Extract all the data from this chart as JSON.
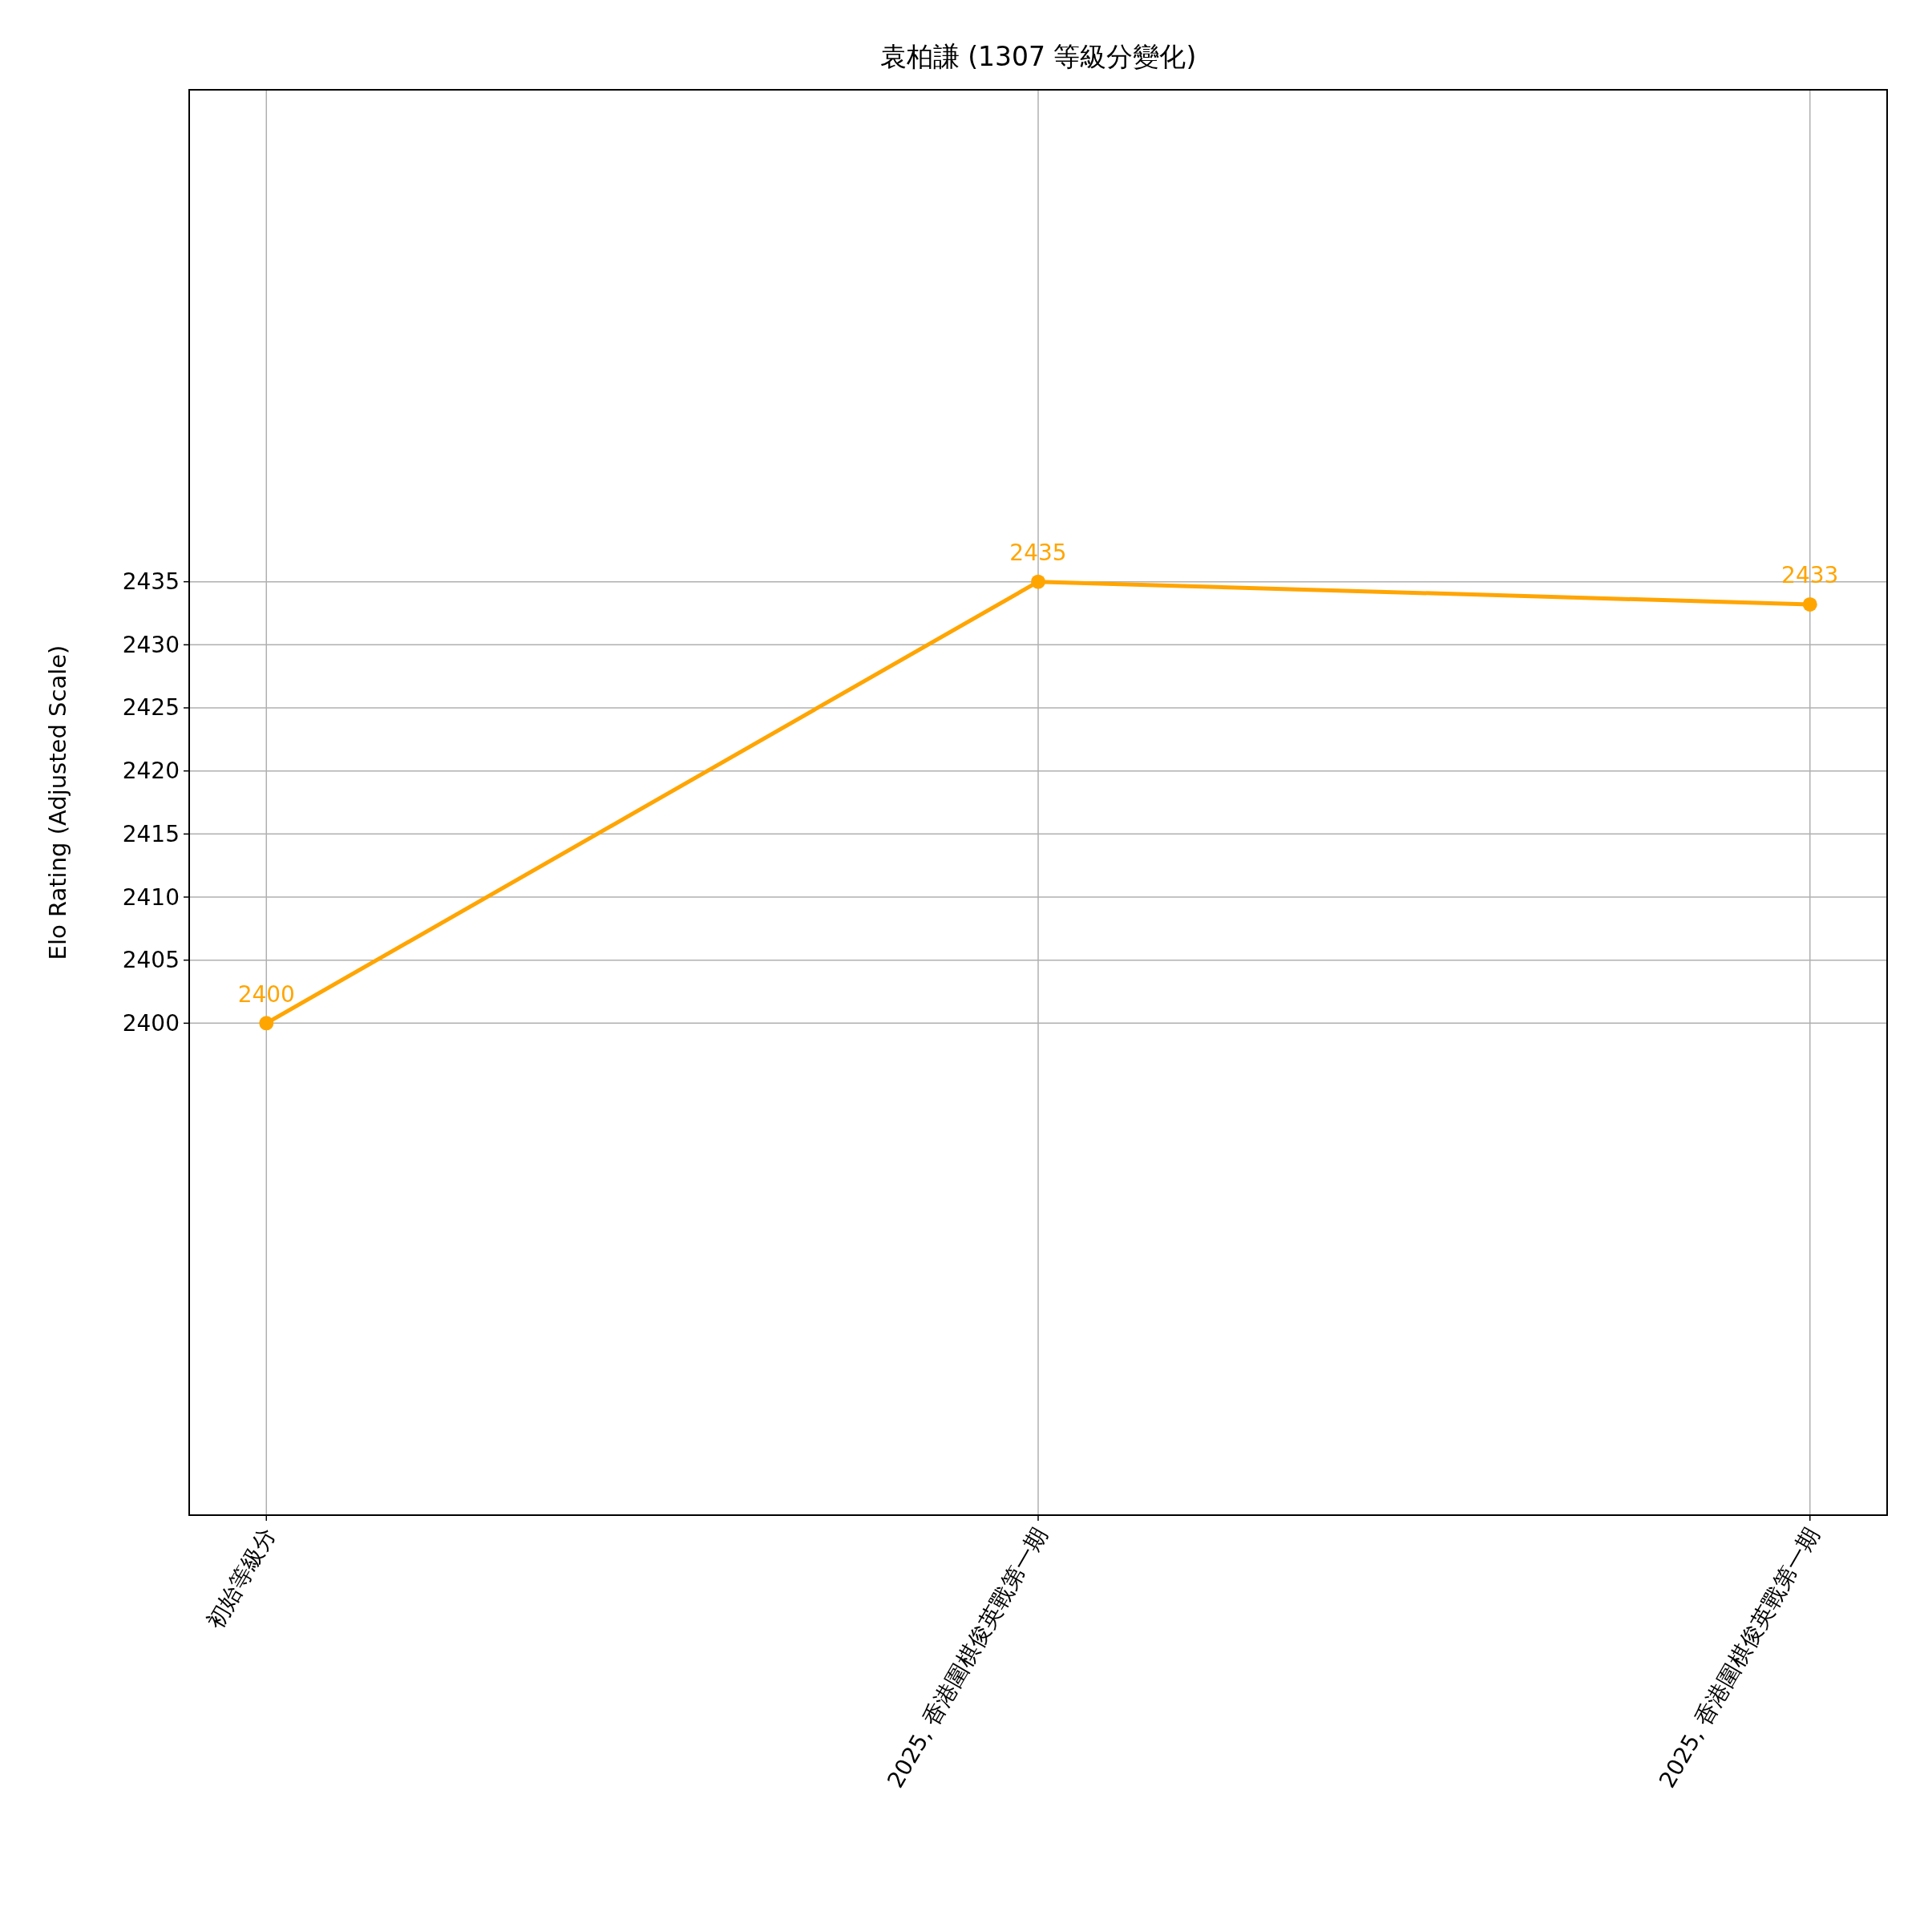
{
  "chart_data": {
    "type": "line",
    "title": "袁柏謙 (1307 等級分變化)",
    "ylabel": "Elo Rating (Adjusted Scale)",
    "categories": [
      "初始等級分",
      "2025, 香港圍棋俊英戰第一期",
      "2025, 香港圍棋俊英戰第一期"
    ],
    "series": [
      {
        "color": "#ffa500",
        "values": [
          2400,
          2435,
          2433.2
        ],
        "value_labels": [
          "2400",
          "2435",
          "2433"
        ]
      }
    ],
    "ylim": [
      2361,
      2474
    ],
    "yticks": [
      2400,
      2405,
      2410,
      2415,
      2420,
      2425,
      2430,
      2435
    ],
    "grid": true,
    "marker": "circle",
    "line_style": "solid"
  }
}
